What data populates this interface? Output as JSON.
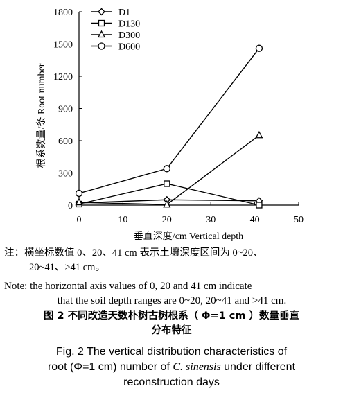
{
  "chart_data": {
    "type": "line",
    "xlabel": "垂直深度/cm Vertical depth",
    "ylabel": "根系数量/条 Root number",
    "xlim": [
      0,
      50
    ],
    "ylim": [
      0,
      1800
    ],
    "xticks": [
      0,
      10,
      20,
      30,
      40,
      50
    ],
    "yticks": [
      0,
      300,
      600,
      900,
      1200,
      1500,
      1800
    ],
    "x": [
      0,
      20,
      41
    ],
    "legend_position": "top-left",
    "grid": false,
    "series": [
      {
        "name": "D1",
        "marker": "diamond",
        "values": [
          20,
          50,
          40
        ]
      },
      {
        "name": "D130",
        "marker": "square",
        "values": [
          10,
          200,
          0
        ]
      },
      {
        "name": "D300",
        "marker": "triangle",
        "values": [
          25,
          5,
          650
        ]
      },
      {
        "name": "D600",
        "marker": "circle",
        "values": [
          110,
          340,
          1460
        ]
      }
    ]
  },
  "notes": {
    "cn_line1": "注：横坐标数值 0、20、41 cm 表示土壤深度区间为 0~20、",
    "cn_line2": "20~41、>41 cm。",
    "en_line1": "Note: the horizontal axis values of 0, 20 and 41 cm indicate",
    "en_line2": "that the soil depth ranges are 0~20, 20~41 and >41 cm."
  },
  "caption": {
    "cn_line1": "图 2  不同改造天数朴树古树根系（ Φ=1 cm ）数量垂直",
    "cn_line2": "分布特征",
    "en_line1": "Fig. 2  The vertical distribution characteristics of",
    "en_line2_a": "root (Φ=1 cm) number of ",
    "en_line2_italic": "C. sinensis",
    "en_line2_b": " under different",
    "en_line3": "reconstruction days"
  }
}
